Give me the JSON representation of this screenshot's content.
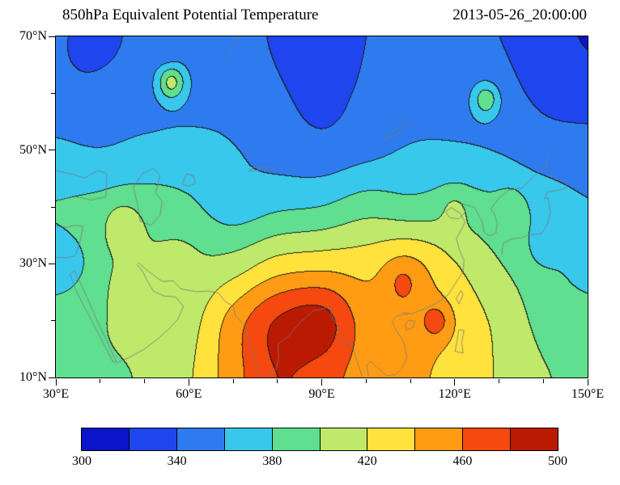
{
  "header": {
    "title": "850hPa Equivalent Potential Temperature",
    "timestamp": "2013-05-26_20:00:00"
  },
  "chart_data": {
    "type": "heatmap",
    "title": "850hPa Equivalent Potential Temperature",
    "timestamp": "2013-05-26_20:00:00",
    "lon_range": [
      30,
      150
    ],
    "lat_range": [
      10,
      70
    ],
    "x_axis": {
      "major": [
        {
          "pos": 30,
          "label": "30°E"
        },
        {
          "pos": 60,
          "label": "60°E"
        },
        {
          "pos": 90,
          "label": "90°E"
        },
        {
          "pos": 120,
          "label": "120°E"
        },
        {
          "pos": 150,
          "label": "150°E"
        }
      ],
      "minor": [
        40,
        50,
        70,
        80,
        100,
        110,
        130,
        140
      ]
    },
    "y_axis": {
      "major": [
        {
          "pos": 70,
          "label": "70°N"
        },
        {
          "pos": 50,
          "label": "50°N"
        },
        {
          "pos": 30,
          "label": "30°N"
        },
        {
          "pos": 10,
          "label": "10°N"
        }
      ],
      "minor": [
        60,
        40,
        20
      ]
    },
    "contour_levels": [
      300,
      320,
      340,
      360,
      380,
      400,
      420,
      440,
      460,
      480,
      500
    ],
    "palette": [
      "#0a14c8",
      "#1e45ee",
      "#2e7bf0",
      "#38c8ec",
      "#5fdf8f",
      "#bfe96a",
      "#ffe23c",
      "#ff9c14",
      "#f5490f",
      "#bb1a02"
    ],
    "contour_line_color": "#1c1c1c",
    "coastline_color": "#7a7a7a",
    "colorbar": {
      "labels": [
        "300",
        "340",
        "380",
        "420",
        "460",
        "500"
      ]
    },
    "grid": {
      "lons": [
        30,
        40,
        50,
        60,
        70,
        80,
        90,
        100,
        110,
        120,
        130,
        140,
        150
      ],
      "lats": [
        70,
        60,
        50,
        40,
        30,
        20,
        10
      ],
      "values": [
        [
          345,
          333,
          349,
          352,
          350,
          337,
          330,
          340,
          349,
          342,
          340,
          331,
          318
        ],
        [
          352,
          349,
          352,
          354,
          353,
          344,
          334,
          344,
          352,
          350,
          346,
          336,
          331
        ],
        [
          363,
          361,
          365,
          366,
          361,
          352,
          347,
          354,
          362,
          363,
          359,
          350,
          348
        ],
        [
          381,
          386,
          390,
          384,
          370,
          377,
          381,
          392,
          388,
          391,
          384,
          373,
          362
        ],
        [
          374,
          396,
          403,
          401,
          409,
          428,
          433,
          432,
          442,
          421,
          401,
          386,
          371
        ],
        [
          388,
          399,
          404,
          412,
          449,
          482,
          489,
          451,
          452,
          434,
          415,
          394,
          388
        ],
        [
          394,
          398,
          402,
          418,
          452,
          480,
          470,
          450,
          445,
          432,
          418,
          402,
          394
        ]
      ]
    },
    "features": [
      {
        "lon": 56,
        "lat": 62,
        "amp": 55,
        "sigma": 2.2
      },
      {
        "lon": 55,
        "lat": 67,
        "amp": -9,
        "sigma": 2.2
      },
      {
        "lon": 36,
        "lat": 67,
        "amp": -9,
        "sigma": 2.5
      },
      {
        "lon": 127,
        "lat": 59,
        "amp": 44,
        "sigma": 2.2
      },
      {
        "lon": 45,
        "lat": 37,
        "amp": 22,
        "sigma": 2.8
      },
      {
        "lon": 116,
        "lat": 20,
        "amp": 27,
        "sigma": 2.3
      },
      {
        "lon": 33,
        "lat": 30,
        "amp": -16,
        "sigma": 2.6
      },
      {
        "lon": 88,
        "lat": 65,
        "amp": -9,
        "sigma": 3.6
      },
      {
        "lon": 140,
        "lat": 33,
        "amp": -15,
        "sigma": 2.6
      },
      {
        "lon": 108,
        "lat": 27,
        "amp": 15,
        "sigma": 2.6
      },
      {
        "lon": 58,
        "lat": 31,
        "amp": 8,
        "sigma": 3.0
      },
      {
        "lon": 133,
        "lat": 41,
        "amp": 10,
        "sigma": 2.5
      },
      {
        "lon": 120,
        "lat": 40,
        "amp": 14,
        "sigma": 2.2
      }
    ],
    "coastlines": [
      [
        [
          30,
          31.1
        ],
        [
          32,
          31.1
        ],
        [
          34.2,
          31.3
        ],
        [
          34.9,
          32.6
        ],
        [
          35.5,
          34.1
        ],
        [
          35.9,
          35.6
        ],
        [
          36.1,
          36.6
        ],
        [
          34.3,
          36.8
        ],
        [
          32.3,
          36.4
        ],
        [
          30.2,
          36.6
        ]
      ],
      [
        [
          30,
          46.4
        ],
        [
          33.5,
          45.8
        ],
        [
          36.5,
          45.1
        ],
        [
          39.5,
          46.4
        ],
        [
          41.5,
          45.9
        ],
        [
          41.3,
          41.8
        ],
        [
          38,
          41.2
        ],
        [
          34,
          41.9
        ],
        [
          31.5,
          41.3
        ],
        [
          30,
          41.2
        ]
      ],
      [
        [
          47.5,
          43.5
        ],
        [
          49.5,
          45.8
        ],
        [
          52,
          46.8
        ],
        [
          53.5,
          45.5
        ],
        [
          52.5,
          42.5
        ],
        [
          54,
          41
        ],
        [
          53.5,
          38.5
        ],
        [
          51.5,
          36.8
        ],
        [
          49,
          37.5
        ],
        [
          48.5,
          40.2
        ],
        [
          47.5,
          43.5
        ]
      ],
      [
        [
          58.5,
          44
        ],
        [
          59.5,
          45.8
        ],
        [
          61,
          45.5
        ],
        [
          61.5,
          44.2
        ],
        [
          60,
          43.6
        ],
        [
          58.5,
          44
        ]
      ],
      [
        [
          73.5,
          46.3
        ],
        [
          76,
          46.5
        ],
        [
          78.5,
          46.4
        ],
        [
          79.5,
          46.8
        ],
        [
          77,
          47.2
        ],
        [
          74.5,
          46.9
        ],
        [
          73.5,
          46.3
        ]
      ],
      [
        [
          103.8,
          51.7
        ],
        [
          106,
          52.3
        ],
        [
          108.2,
          53.3
        ],
        [
          109.8,
          54.6
        ],
        [
          109,
          55.3
        ],
        [
          107.3,
          54
        ],
        [
          105,
          52.9
        ],
        [
          103.8,
          51.7
        ]
      ],
      [
        [
          33.2,
          28.2
        ],
        [
          34.6,
          25.2
        ],
        [
          36.6,
          22.2
        ],
        [
          38.6,
          19.2
        ],
        [
          41,
          15.6
        ],
        [
          43,
          12.6
        ],
        [
          43.6,
          12.9
        ],
        [
          41.4,
          16.6
        ],
        [
          39.2,
          20.2
        ],
        [
          37,
          24.2
        ],
        [
          35.2,
          27.2
        ],
        [
          34.2,
          28.8
        ],
        [
          33.2,
          28.2
        ]
      ],
      [
        [
          43.5,
          12.5
        ],
        [
          46.5,
          13.5
        ],
        [
          50,
          15
        ],
        [
          53,
          16.8
        ],
        [
          55.5,
          18.5
        ],
        [
          57.5,
          20.2
        ],
        [
          58.8,
          22.5
        ],
        [
          57,
          24.2
        ],
        [
          54.5,
          24.3
        ],
        [
          52,
          25.2
        ],
        [
          50.5,
          27.2
        ],
        [
          49.5,
          28.8
        ],
        [
          48.2,
          29.9
        ]
      ],
      [
        [
          48.6,
          30.2
        ],
        [
          51,
          28.6
        ],
        [
          54,
          26.9
        ],
        [
          56.5,
          27
        ],
        [
          58.2,
          25.6
        ],
        [
          61.5,
          25.1
        ],
        [
          64.5,
          25.2
        ],
        [
          66.8,
          24.8
        ],
        [
          68,
          23.5
        ],
        [
          70,
          22.5
        ],
        [
          70.6,
          20.8
        ],
        [
          72.8,
          19
        ],
        [
          73.6,
          16
        ],
        [
          74.9,
          13
        ],
        [
          76.2,
          10.2
        ]
      ],
      [
        [
          77.5,
          10.2
        ],
        [
          79.8,
          11.6
        ],
        [
          80.3,
          13.5
        ],
        [
          80.1,
          15.9
        ],
        [
          82.3,
          17.1
        ],
        [
          85,
          19.6
        ],
        [
          87.2,
          21.1
        ],
        [
          88.2,
          21.8
        ],
        [
          89.5,
          21.9
        ],
        [
          90.6,
          22.2
        ],
        [
          91.8,
          22.4
        ],
        [
          92.3,
          20.8
        ],
        [
          93.6,
          19
        ],
        [
          94.3,
          16.5
        ],
        [
          95.5,
          15.8
        ],
        [
          96.3,
          16.4
        ],
        [
          97.5,
          14
        ],
        [
          98.5,
          11.6
        ],
        [
          99.1,
          10.2
        ]
      ],
      [
        [
          100.6,
          10.2
        ],
        [
          100.1,
          12.2
        ],
        [
          101.1,
          12.8
        ],
        [
          102.5,
          11.8
        ],
        [
          104.6,
          10.3
        ],
        [
          106.6,
          10.5
        ],
        [
          108.1,
          11.6
        ],
        [
          109.2,
          13.5
        ],
        [
          108.6,
          16.1
        ],
        [
          106.6,
          18.6
        ],
        [
          105.9,
          19.9
        ],
        [
          107.1,
          20.9
        ],
        [
          109.6,
          21.2
        ]
      ],
      [
        [
          108.2,
          21.4
        ],
        [
          110.3,
          21.2
        ],
        [
          113.6,
          22.2
        ],
        [
          116.1,
          23.2
        ],
        [
          118.6,
          24.6
        ],
        [
          120.2,
          26.6
        ],
        [
          121.9,
          28.6
        ],
        [
          122.1,
          30.6
        ],
        [
          121.1,
          32.4
        ],
        [
          120.4,
          34.4
        ],
        [
          121.9,
          36.6
        ],
        [
          122.3,
          37.4
        ],
        [
          121.2,
          38.9
        ],
        [
          119.2,
          39.9
        ],
        [
          117.9,
          39.1
        ],
        [
          118.9,
          38.1
        ],
        [
          120.9,
          37.9
        ],
        [
          122.4,
          39.1
        ],
        [
          121.4,
          40.6
        ],
        [
          123.8,
          40.1
        ],
        [
          124.6,
          39.9
        ]
      ],
      [
        [
          124.6,
          39.8
        ],
        [
          125.4,
          38.6
        ],
        [
          126.3,
          37.2
        ],
        [
          126.6,
          35.6
        ],
        [
          127.9,
          34.9
        ],
        [
          129.3,
          35.4
        ],
        [
          129.6,
          37.1
        ],
        [
          128.9,
          38.9
        ],
        [
          128.1,
          39.6
        ],
        [
          130.1,
          41.6
        ],
        [
          132.1,
          42.9
        ],
        [
          135.1,
          43.3
        ],
        [
          138.6,
          45.9
        ],
        [
          140.6,
          47.1
        ],
        [
          141.1,
          48.9
        ]
      ],
      [
        [
          130.6,
          31.6
        ],
        [
          130.9,
          33.6
        ],
        [
          132.6,
          34.3
        ],
        [
          135.1,
          34.6
        ],
        [
          136.9,
          35.1
        ],
        [
          139.6,
          35.3
        ],
        [
          140.9,
          36.9
        ],
        [
          141.6,
          39.1
        ],
        [
          141.1,
          41.6
        ],
        [
          140.3,
          41.4
        ],
        [
          140.9,
          42.6
        ],
        [
          143.1,
          42.9
        ],
        [
          145.3,
          43.4
        ],
        [
          145.1,
          44.6
        ],
        [
          142.6,
          44.9
        ],
        [
          141.6,
          45.4
        ],
        [
          142.1,
          46.6
        ]
      ],
      [
        [
          121,
          22.9
        ],
        [
          121.9,
          24.6
        ],
        [
          121.4,
          25.3
        ],
        [
          120.3,
          23.9
        ],
        [
          121,
          22.9
        ]
      ],
      [
        [
          109.1,
          18.3
        ],
        [
          110.6,
          18.8
        ],
        [
          111,
          19.9
        ],
        [
          109.6,
          20.1
        ],
        [
          108.8,
          19.3
        ],
        [
          109.1,
          18.3
        ]
      ],
      [
        [
          120.1,
          14.6
        ],
        [
          120.6,
          16.6
        ],
        [
          120.9,
          18.4
        ],
        [
          122.1,
          18.3
        ],
        [
          121.6,
          16.1
        ],
        [
          121.9,
          14.3
        ],
        [
          120.1,
          14.6
        ]
      ],
      [
        [
          68.5,
          66.1
        ],
        [
          70.1,
          68.6
        ],
        [
          71.6,
          70
        ]
      ]
    ]
  }
}
